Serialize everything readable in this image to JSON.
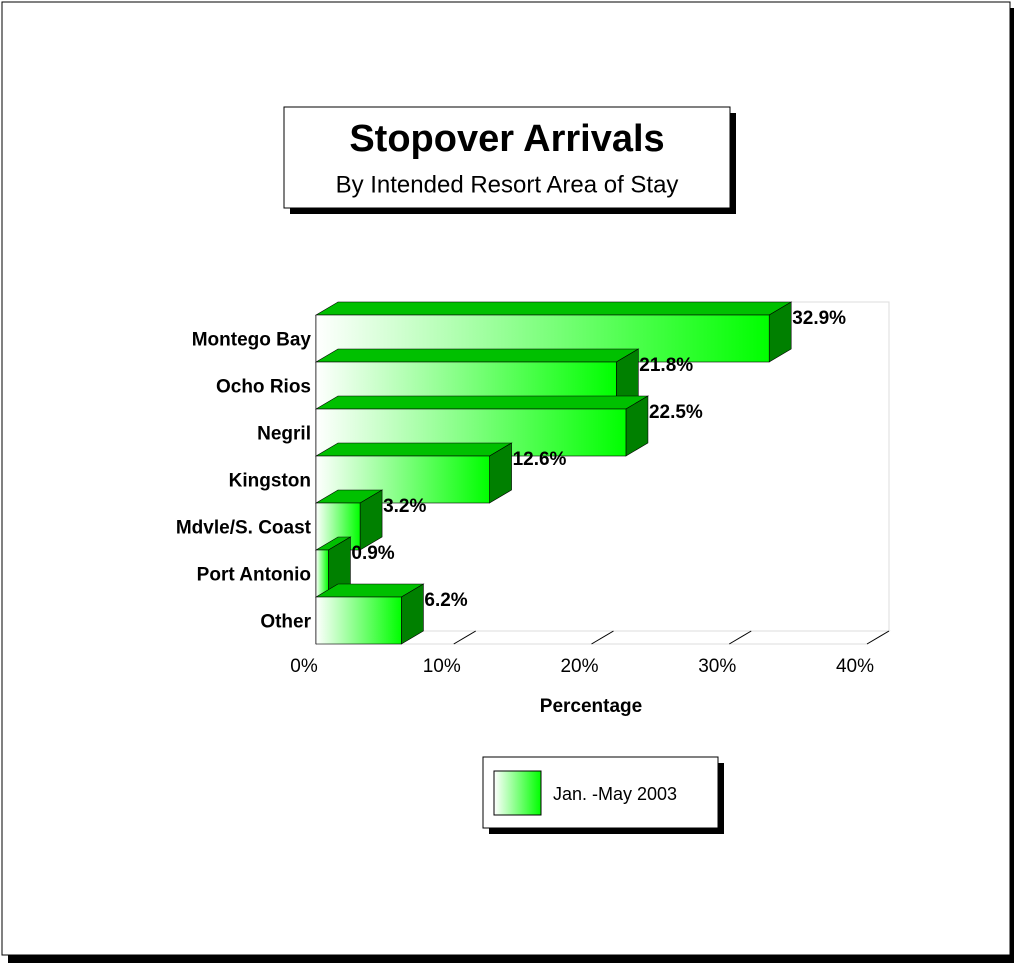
{
  "chart_data": {
    "type": "bar",
    "orientation": "horizontal",
    "title": "Stopover Arrivals",
    "subtitle": "By Intended Resort Area of Stay",
    "categories": [
      "Montego Bay",
      "Ocho Rios",
      "Negril",
      "Kingston",
      "Mdvle/S. Coast",
      "Port Antonio",
      "Other"
    ],
    "series": [
      {
        "name": "Jan. -May 2003",
        "color": "#00ff00",
        "values": [
          32.9,
          21.8,
          22.5,
          12.6,
          3.2,
          0.9,
          6.2
        ],
        "value_labels": [
          "32.9%",
          "21.8%",
          "22.5%",
          "12.6%",
          "3.2%",
          "0.9%",
          "6.2%"
        ]
      }
    ],
    "xlim": [
      0,
      40
    ],
    "xticks": [
      {
        "value": 0,
        "label": "0%"
      },
      {
        "value": 10,
        "label": "10%"
      },
      {
        "value": 20,
        "label": "20%"
      },
      {
        "value": 30,
        "label": "30%"
      },
      {
        "value": 40,
        "label": "40%"
      }
    ],
    "x_label": "Percentage"
  }
}
